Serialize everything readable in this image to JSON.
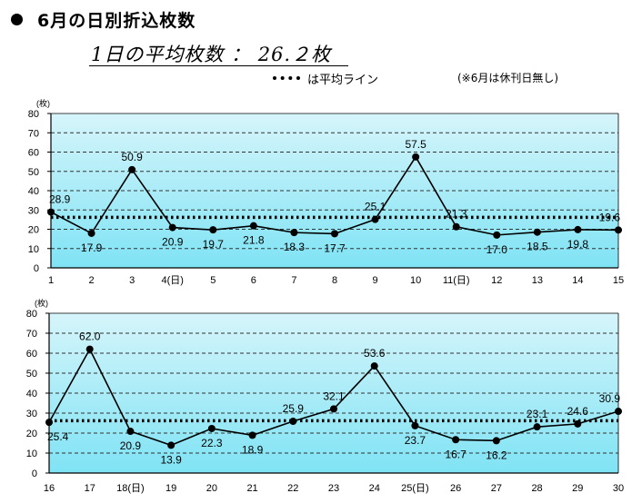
{
  "header": {
    "title": "6月の日別折込枚数",
    "average_text": "1日の平均枚数 ： 26.２枚",
    "legend_label": "は平均ライン",
    "note": "(※6月は休刊日無し)"
  },
  "colors": {
    "plot_top": "#d6f5fb",
    "plot_bottom": "#7fe3f4",
    "line": "#000000"
  },
  "chart_data": [
    {
      "type": "line",
      "unit": "(枚)",
      "ylim": [
        0,
        80
      ],
      "yticks": [
        "0",
        "10",
        "20",
        "30",
        "40",
        "50",
        "60",
        "70",
        "80"
      ],
      "grid": true,
      "categories": [
        "1",
        "2",
        "3",
        "4(日)",
        "5",
        "6",
        "7",
        "8",
        "9",
        "10",
        "11(日)",
        "12",
        "13",
        "14",
        "15"
      ],
      "values": [
        28.9,
        17.9,
        50.9,
        20.9,
        19.7,
        21.8,
        18.3,
        17.7,
        25.1,
        57.5,
        21.3,
        17.0,
        18.5,
        19.8,
        19.6
      ],
      "labels": [
        "28.9",
        "17.9",
        "50.9",
        "20.9",
        "19.7",
        "21.8",
        "18.3",
        "17.7",
        "25.1",
        "57.5",
        "21.3",
        "17.0",
        "18.5",
        "19.8",
        "19.6"
      ],
      "label_pos": [
        "above",
        "below",
        "above",
        "below",
        "below",
        "below",
        "below",
        "below",
        "above",
        "above",
        "above",
        "below",
        "below",
        "below",
        "above"
      ],
      "average": 26.2
    },
    {
      "type": "line",
      "unit": "(枚)",
      "ylim": [
        0,
        80
      ],
      "yticks": [
        "0",
        "10",
        "20",
        "30",
        "40",
        "50",
        "60",
        "70",
        "80"
      ],
      "grid": true,
      "categories": [
        "16",
        "17",
        "18(日)",
        "19",
        "20",
        "21",
        "22",
        "23",
        "24",
        "25(日)",
        "26",
        "27",
        "28",
        "29",
        "30"
      ],
      "values": [
        25.4,
        62.0,
        20.9,
        13.9,
        22.3,
        18.9,
        25.9,
        32.1,
        53.6,
        23.7,
        16.7,
        16.2,
        23.1,
        24.6,
        30.9
      ],
      "labels": [
        "25.4",
        "62.0",
        "20.9",
        "13.9",
        "22.3",
        "18.9",
        "25.9",
        "32.1",
        "53.6",
        "23.7",
        "16.7",
        "16.2",
        "23.1",
        "24.6",
        "30.9"
      ],
      "label_pos": [
        "below",
        "above",
        "below",
        "below",
        "below",
        "below",
        "above",
        "above",
        "above",
        "below",
        "below",
        "below",
        "above",
        "above",
        "above"
      ],
      "average": 26.2
    }
  ]
}
